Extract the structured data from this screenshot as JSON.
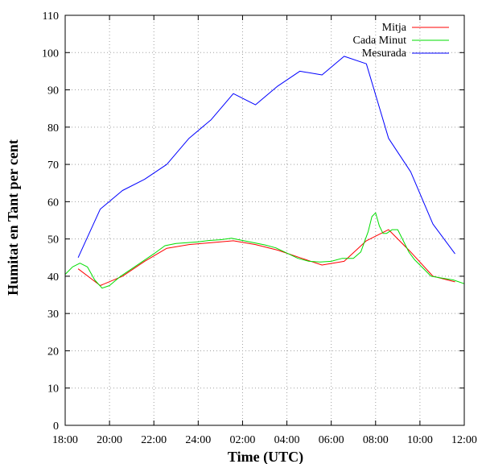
{
  "chart_data": {
    "type": "line",
    "xlabel": "Time (UTC)",
    "ylabel": "Humitat en Tant per cent",
    "xlim": [
      "18:00",
      "12:00"
    ],
    "ylim": [
      0,
      110
    ],
    "grid": true,
    "legend_position": "top-right",
    "x_ticks": [
      "18:00",
      "20:00",
      "22:00",
      "24:00",
      "02:00",
      "04:00",
      "06:00",
      "08:00",
      "10:00",
      "12:00"
    ],
    "y_ticks": [
      0,
      10,
      20,
      30,
      40,
      50,
      60,
      70,
      80,
      90,
      100,
      110
    ],
    "series": [
      {
        "name": "Mitja",
        "color": "#ff0000",
        "x": [
          "18:35",
          "19:35",
          "20:35",
          "21:35",
          "22:35",
          "23:35",
          "00:35",
          "01:35",
          "02:35",
          "03:35",
          "04:35",
          "05:35",
          "06:35",
          "07:35",
          "08:35",
          "09:35",
          "10:35",
          "11:35"
        ],
        "values": [
          42,
          37.5,
          40,
          44,
          47.5,
          48.5,
          49,
          49.5,
          48.5,
          47,
          45,
          43,
          44,
          49.5,
          52.5,
          46.5,
          40,
          38.5
        ]
      },
      {
        "name": "Cada Minut",
        "color": "#00dd00",
        "x": [
          "18:00",
          "18:20",
          "18:40",
          "19:00",
          "19:20",
          "19:40",
          "20:00",
          "20:30",
          "21:00",
          "21:30",
          "22:00",
          "22:30",
          "23:00",
          "23:30",
          "00:00",
          "00:30",
          "01:00",
          "01:30",
          "02:00",
          "02:30",
          "03:00",
          "03:30",
          "04:00",
          "04:30",
          "05:00",
          "05:30",
          "06:00",
          "06:30",
          "07:00",
          "07:20",
          "07:40",
          "07:50",
          "08:00",
          "08:10",
          "08:20",
          "08:30",
          "08:45",
          "09:00",
          "09:15",
          "09:30",
          "09:45",
          "10:00",
          "10:30",
          "11:00",
          "11:30",
          "12:00"
        ],
        "values": [
          40.5,
          42.5,
          43.5,
          42.5,
          39,
          36.8,
          37.5,
          40,
          42,
          44,
          46,
          48.2,
          48.8,
          49,
          49.2,
          49.6,
          49.8,
          50.2,
          49.6,
          49,
          48.4,
          47.6,
          46.2,
          44.8,
          44,
          43.8,
          44,
          44.8,
          44.8,
          46.5,
          52,
          56,
          57,
          53.5,
          51.5,
          51.5,
          52.5,
          52.5,
          49.5,
          46.5,
          44.5,
          43,
          40,
          39.5,
          39,
          38
        ]
      },
      {
        "name": "Mesurada",
        "color": "#0000ff",
        "x": [
          "18:35",
          "19:35",
          "20:35",
          "21:35",
          "22:35",
          "23:35",
          "00:35",
          "01:35",
          "02:35",
          "03:35",
          "04:35",
          "05:35",
          "06:35",
          "07:35",
          "08:35",
          "09:35",
          "10:35",
          "11:35"
        ],
        "values": [
          45,
          58,
          63,
          66,
          70,
          77,
          82,
          89,
          86,
          91,
          95,
          94,
          99,
          97,
          77,
          68,
          54,
          46
        ]
      }
    ]
  }
}
